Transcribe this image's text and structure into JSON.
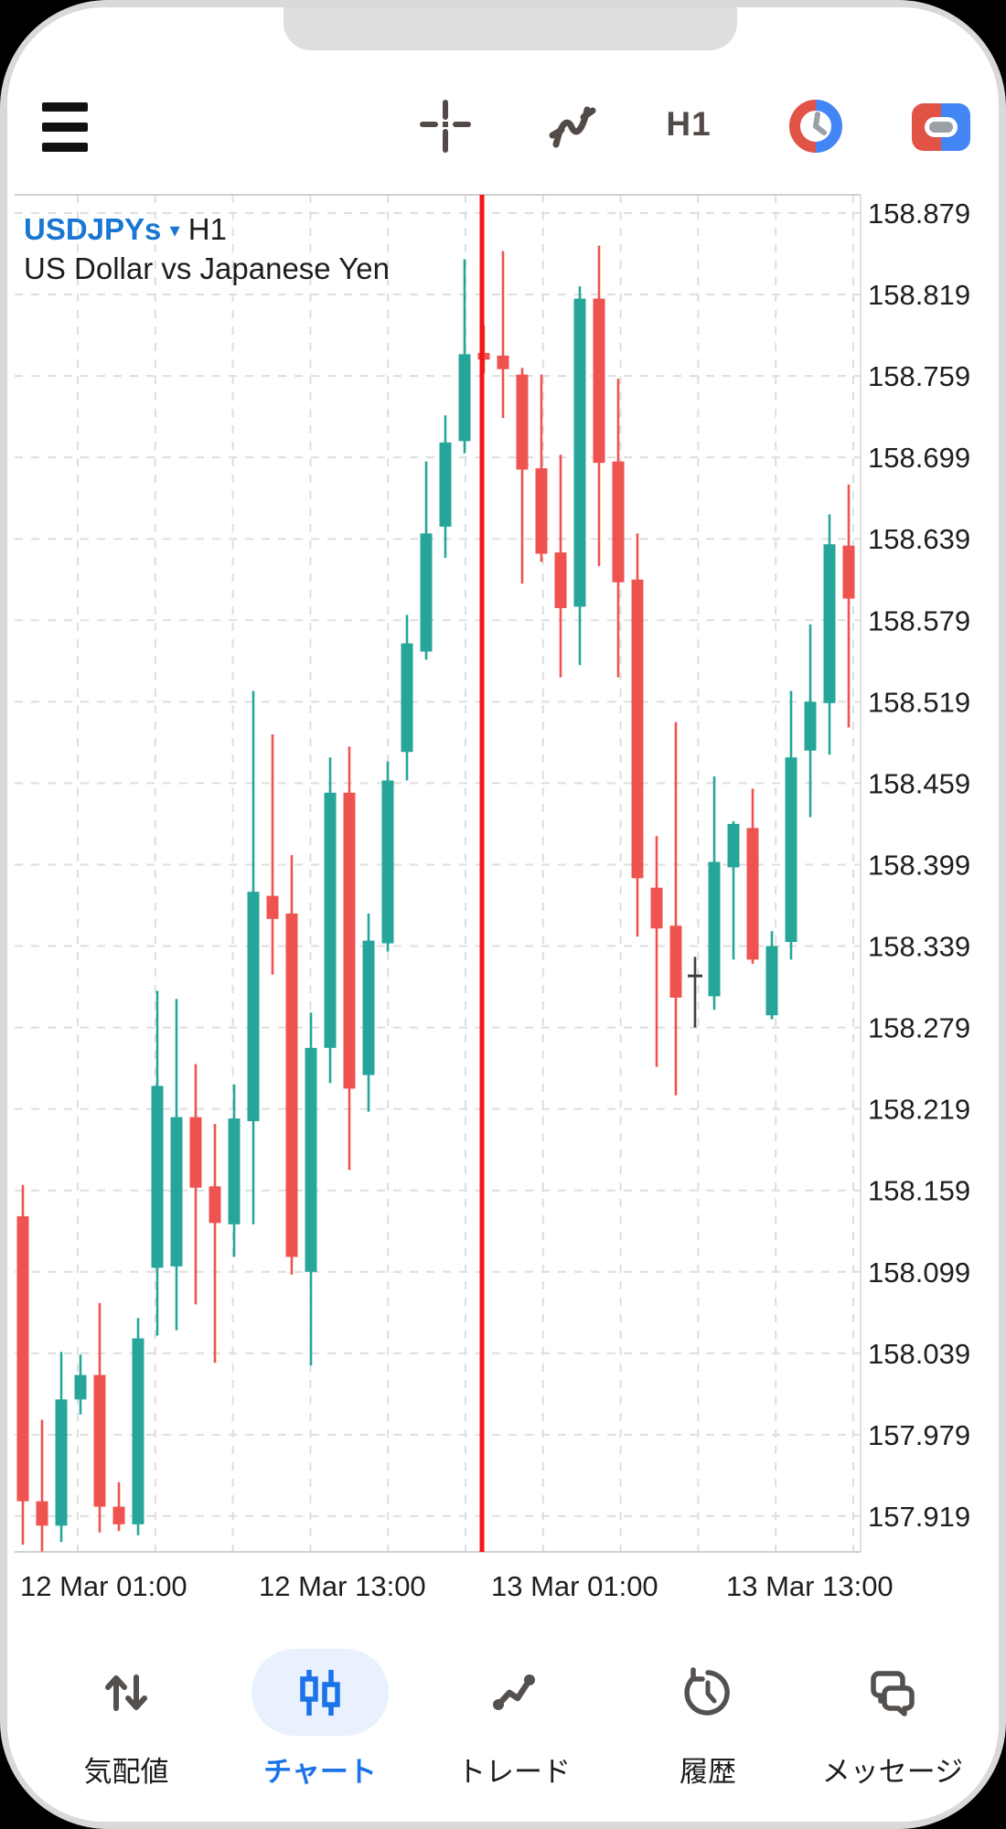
{
  "toolbar": {
    "timeframe_label": "H1"
  },
  "chart": {
    "symbol": "USDJPYs",
    "dropdown_arrow": "▾",
    "symbol_timeframe": "H1",
    "description": "US Dollar vs Japanese Yen"
  },
  "chart_data": {
    "type": "candlestick",
    "title": "USDJPYs H1 — US Dollar vs Japanese Yen",
    "period": "H1",
    "grid": true,
    "ylim": [
      157.893,
      158.892
    ],
    "bullish_color": "#26a69a",
    "bearish_color": "#ef5350",
    "doji_color": "#3f3f3f",
    "vline_color": "#f21616",
    "vline_time": "13 Mar 01:00",
    "y_ticks": [
      158.879,
      158.819,
      158.759,
      158.699,
      158.639,
      158.579,
      158.519,
      158.459,
      158.399,
      158.339,
      158.279,
      158.219,
      158.159,
      158.099,
      158.039,
      157.979,
      157.919
    ],
    "x_ticks": [
      "12 Mar 01:00",
      "12 Mar 13:00",
      "13 Mar 01:00",
      "13 Mar 13:00"
    ],
    "candles": [
      {
        "t": "12 Mar 01:00",
        "o": 158.14,
        "h": 158.163,
        "l": 157.898,
        "c": 157.93
      },
      {
        "t": "12 Mar 02:00",
        "o": 157.93,
        "h": 157.99,
        "l": 157.893,
        "c": 157.912
      },
      {
        "t": "12 Mar 03:00",
        "o": 157.912,
        "h": 158.04,
        "l": 157.9,
        "c": 158.005
      },
      {
        "t": "12 Mar 04:00",
        "o": 158.005,
        "h": 158.038,
        "l": 157.994,
        "c": 158.023
      },
      {
        "t": "12 Mar 05:00",
        "o": 158.023,
        "h": 158.076,
        "l": 157.907,
        "c": 157.926
      },
      {
        "t": "12 Mar 06:00",
        "o": 157.926,
        "h": 157.944,
        "l": 157.908,
        "c": 157.913
      },
      {
        "t": "12 Mar 07:00",
        "o": 157.913,
        "h": 158.065,
        "l": 157.905,
        "c": 158.05
      },
      {
        "t": "12 Mar 08:00",
        "o": 158.102,
        "h": 158.306,
        "l": 158.052,
        "c": 158.236
      },
      {
        "t": "12 Mar 09:00",
        "o": 158.103,
        "h": 158.3,
        "l": 158.056,
        "c": 158.213
      },
      {
        "t": "12 Mar 10:00",
        "o": 158.213,
        "h": 158.252,
        "l": 158.075,
        "c": 158.161
      },
      {
        "t": "12 Mar 11:00",
        "o": 158.162,
        "h": 158.208,
        "l": 158.032,
        "c": 158.135
      },
      {
        "t": "12 Mar 12:00",
        "o": 158.134,
        "h": 158.237,
        "l": 158.11,
        "c": 158.212
      },
      {
        "t": "12 Mar 13:00",
        "o": 158.21,
        "h": 158.527,
        "l": 158.134,
        "c": 158.379
      },
      {
        "t": "12 Mar 14:00",
        "o": 158.376,
        "h": 158.495,
        "l": 158.318,
        "c": 158.359
      },
      {
        "t": "12 Mar 15:00",
        "o": 158.363,
        "h": 158.406,
        "l": 158.097,
        "c": 158.11
      },
      {
        "t": "12 Mar 16:00",
        "o": 158.099,
        "h": 158.29,
        "l": 158.03,
        "c": 158.264
      },
      {
        "t": "12 Mar 17:00",
        "o": 158.264,
        "h": 158.478,
        "l": 158.238,
        "c": 158.452
      },
      {
        "t": "12 Mar 18:00",
        "o": 158.452,
        "h": 158.486,
        "l": 158.174,
        "c": 158.234
      },
      {
        "t": "12 Mar 19:00",
        "o": 158.244,
        "h": 158.363,
        "l": 158.217,
        "c": 158.343
      },
      {
        "t": "12 Mar 20:00",
        "o": 158.341,
        "h": 158.475,
        "l": 158.335,
        "c": 158.461
      },
      {
        "t": "12 Mar 21:00",
        "o": 158.482,
        "h": 158.583,
        "l": 158.461,
        "c": 158.562
      },
      {
        "t": "12 Mar 22:00",
        "o": 158.556,
        "h": 158.696,
        "l": 158.55,
        "c": 158.643
      },
      {
        "t": "12 Mar 23:00",
        "o": 158.648,
        "h": 158.73,
        "l": 158.625,
        "c": 158.71
      },
      {
        "t": "13 Mar 00:00",
        "o": 158.711,
        "h": 158.845,
        "l": 158.702,
        "c": 158.775
      },
      {
        "t": "13 Mar 01:00",
        "o": 158.776,
        "h": 158.796,
        "l": 158.761,
        "c": 158.771
      },
      {
        "t": "13 Mar 02:00",
        "o": 158.774,
        "h": 158.851,
        "l": 158.728,
        "c": 158.764
      },
      {
        "t": "13 Mar 03:00",
        "o": 158.76,
        "h": 158.765,
        "l": 158.606,
        "c": 158.69
      },
      {
        "t": "13 Mar 04:00",
        "o": 158.691,
        "h": 158.76,
        "l": 158.622,
        "c": 158.628
      },
      {
        "t": "13 Mar 05:00",
        "o": 158.629,
        "h": 158.701,
        "l": 158.537,
        "c": 158.588
      },
      {
        "t": "13 Mar 06:00",
        "o": 158.589,
        "h": 158.825,
        "l": 158.546,
        "c": 158.816
      },
      {
        "t": "13 Mar 07:00",
        "o": 158.816,
        "h": 158.855,
        "l": 158.619,
        "c": 158.695
      },
      {
        "t": "13 Mar 08:00",
        "o": 158.696,
        "h": 158.757,
        "l": 158.537,
        "c": 158.607
      },
      {
        "t": "13 Mar 09:00",
        "o": 158.609,
        "h": 158.643,
        "l": 158.346,
        "c": 158.389
      },
      {
        "t": "13 Mar 10:00",
        "o": 158.382,
        "h": 158.42,
        "l": 158.25,
        "c": 158.352
      },
      {
        "t": "13 Mar 11:00",
        "o": 158.354,
        "h": 158.504,
        "l": 158.229,
        "c": 158.301
      },
      {
        "t": "13 Mar 12:00",
        "o": 158.317,
        "h": 158.331,
        "l": 158.279,
        "c": 158.317
      },
      {
        "t": "13 Mar 13:00",
        "o": 158.302,
        "h": 158.464,
        "l": 158.292,
        "c": 158.401
      },
      {
        "t": "13 Mar 14:00",
        "o": 158.397,
        "h": 158.431,
        "l": 158.329,
        "c": 158.429
      },
      {
        "t": "13 Mar 15:00",
        "o": 158.426,
        "h": 158.455,
        "l": 158.326,
        "c": 158.329
      },
      {
        "t": "13 Mar 16:00",
        "o": 158.288,
        "h": 158.35,
        "l": 158.285,
        "c": 158.339
      },
      {
        "t": "13 Mar 17:00",
        "o": 158.342,
        "h": 158.527,
        "l": 158.329,
        "c": 158.478
      },
      {
        "t": "13 Mar 18:00",
        "o": 158.483,
        "h": 158.576,
        "l": 158.434,
        "c": 158.519
      },
      {
        "t": "13 Mar 19:00",
        "o": 158.518,
        "h": 158.657,
        "l": 158.48,
        "c": 158.635
      },
      {
        "t": "13 Mar 20:00",
        "o": 158.634,
        "h": 158.679,
        "l": 158.5,
        "c": 158.595
      }
    ]
  },
  "bottom_nav": [
    {
      "label": "気配値",
      "active": false
    },
    {
      "label": "チャート",
      "active": true
    },
    {
      "label": "トレード",
      "active": false
    },
    {
      "label": "履歴",
      "active": false
    },
    {
      "label": "メッセージ",
      "active": false
    }
  ]
}
